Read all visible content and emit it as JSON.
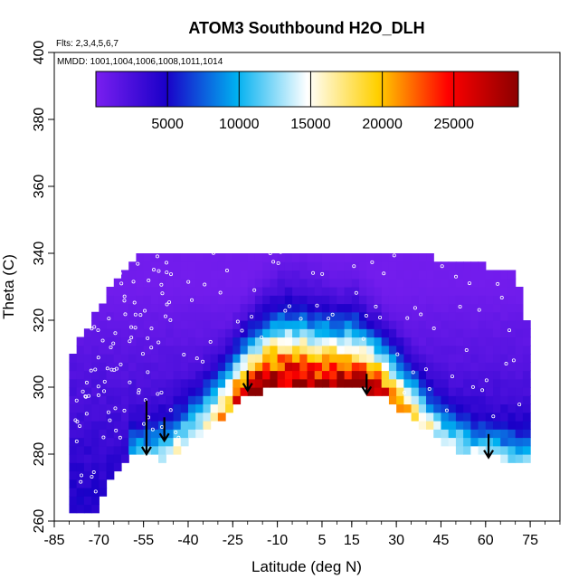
{
  "chart_data": {
    "type": "heatmap",
    "title": "ATOM3 Southbound H2O_DLH",
    "flights_note": "Flts: 2,3,4,5,6,7",
    "mmdd_note": "MMDD: 1001,1004,1006,1008,1011,1014",
    "xlabel": "Latitude (deg N)",
    "ylabel": "Theta (C)",
    "xlim": [
      -85,
      85
    ],
    "ylim": [
      260,
      400
    ],
    "x_ticks": [
      -85,
      -70,
      -55,
      -40,
      -25,
      -10,
      5,
      15,
      30,
      45,
      60,
      75
    ],
    "x_tick_labels": [
      "-85",
      "-70",
      "-55",
      "-40",
      "-25",
      "-10",
      "5",
      "15",
      "30",
      "45",
      "60",
      "75"
    ],
    "y_ticks": [
      260,
      280,
      300,
      320,
      340,
      360,
      380,
      400
    ],
    "y_tick_labels": [
      "260",
      "280",
      "300",
      "320",
      "340",
      "360",
      "380",
      "400"
    ],
    "colorbar": {
      "min": 0,
      "max": 29500,
      "ticks": [
        5000,
        10000,
        15000,
        20000,
        25000
      ],
      "tick_labels": [
        "5000",
        "10000",
        "15000",
        "20000",
        "25000"
      ],
      "stops": [
        "#7a1ff0",
        "#1a00c8",
        "#00b0f0",
        "#ffffff",
        "#ffd000",
        "#ff0000",
        "#8b0000"
      ]
    },
    "surface_theta_profile": {
      "lat": [
        -72,
        -68,
        -60,
        -55,
        -48,
        -40,
        -30,
        -22,
        -15,
        -5,
        5,
        15,
        22,
        28,
        35,
        42,
        50,
        58,
        65,
        72
      ],
      "theta": [
        262,
        270,
        280,
        281,
        278,
        283,
        290,
        296,
        299,
        300,
        300,
        300,
        298,
        296,
        291,
        286,
        281,
        279,
        279,
        277
      ]
    },
    "top_theta_profile": {
      "lat": [
        -80,
        -75,
        -70,
        -65,
        -60,
        -55,
        -50,
        -40,
        -30,
        -20,
        -10,
        0,
        10,
        20,
        30,
        40,
        50,
        60,
        70,
        74
      ],
      "theta": [
        308,
        316,
        324,
        332,
        337,
        340,
        340,
        341,
        341,
        341,
        341,
        341,
        340,
        340,
        340,
        339,
        338,
        336,
        334,
        318
      ]
    },
    "moist_layer": {
      "lat": [
        -58,
        -50,
        -40,
        -30,
        -22,
        -15,
        -8,
        0,
        8,
        16,
        24,
        32,
        40,
        48,
        56,
        64,
        72
      ],
      "bottom_theta": [
        280,
        279,
        283,
        290,
        296,
        299,
        300,
        300,
        300,
        300,
        298,
        294,
        288,
        283,
        280,
        279,
        277
      ],
      "peak_h2o": [
        7000,
        9000,
        11000,
        15000,
        24000,
        28000,
        27000,
        25000,
        26000,
        27000,
        24000,
        18000,
        12000,
        10000,
        9000,
        8000,
        8000
      ],
      "depth_theta": [
        6,
        8,
        10,
        12,
        14,
        16,
        18,
        18,
        16,
        16,
        14,
        12,
        10,
        9,
        8,
        8,
        8
      ]
    },
    "arrows": [
      {
        "lat": -54,
        "theta_top": 296,
        "theta_bottom": 280
      },
      {
        "lat": -48,
        "theta_top": 291,
        "theta_bottom": 284
      },
      {
        "lat": -20,
        "theta_top": 305,
        "theta_bottom": 299
      },
      {
        "lat": 20,
        "theta_top": 304,
        "theta_bottom": 298
      },
      {
        "lat": 61,
        "theta_top": 286,
        "theta_bottom": 279
      }
    ]
  }
}
